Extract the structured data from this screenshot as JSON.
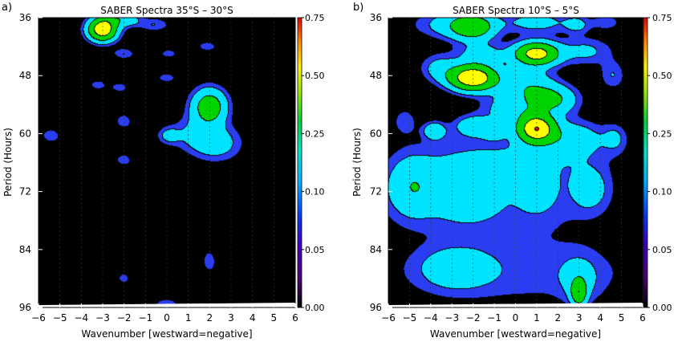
{
  "chart_data": [
    {
      "type": "heatmap",
      "panel_label": "a)",
      "title": "SABER Spectra   35°S  –   30°S",
      "xlabel": "Wavenumber [westward=negative]",
      "ylabel": "Period (Hours)",
      "xlim": [
        -6,
        6
      ],
      "ylim": [
        96,
        36
      ],
      "xticks": [
        "−6",
        "−5",
        "−4",
        "−3",
        "−2",
        "−1",
        "0",
        "1",
        "2",
        "3",
        "4",
        "5",
        "6"
      ],
      "yticks": [
        "36",
        "48",
        "60",
        "72",
        "84",
        "96"
      ],
      "colorbar_ticks": [
        "0.75",
        "0.50",
        "0.25",
        "0.10",
        "0.05",
        "0.00"
      ],
      "contour_levels": [
        0.05,
        0.1,
        0.25,
        0.5,
        0.75
      ],
      "blobs": [
        {
          "wavenumber": -3.0,
          "period": 38.5,
          "sx": 0.45,
          "sy": 1.6,
          "amp": 0.7
        },
        {
          "wavenumber": -2.6,
          "period": 36.5,
          "sx": 0.4,
          "sy": 1.0,
          "amp": 0.14
        },
        {
          "wavenumber": -1.8,
          "period": 36.5,
          "sx": 0.4,
          "sy": 1.0,
          "amp": 0.16
        },
        {
          "wavenumber": -0.6,
          "period": 37.5,
          "sx": 0.5,
          "sy": 1.0,
          "amp": 0.1
        },
        {
          "wavenumber": -2.0,
          "period": 43.5,
          "sx": 0.35,
          "sy": 0.8,
          "amp": 0.1
        },
        {
          "wavenumber": 0.1,
          "period": 43.5,
          "sx": 0.3,
          "sy": 0.7,
          "amp": 0.08
        },
        {
          "wavenumber": 1.9,
          "period": 42.0,
          "sx": 0.35,
          "sy": 0.8,
          "amp": 0.08
        },
        {
          "wavenumber": -3.2,
          "period": 50.0,
          "sx": 0.3,
          "sy": 0.8,
          "amp": 0.08
        },
        {
          "wavenumber": -2.2,
          "period": 50.5,
          "sx": 0.3,
          "sy": 0.8,
          "amp": 0.08
        },
        {
          "wavenumber": 0.0,
          "period": 48.5,
          "sx": 0.3,
          "sy": 0.7,
          "amp": 0.09
        },
        {
          "wavenumber": 2.0,
          "period": 54.5,
          "sx": 0.55,
          "sy": 2.5,
          "amp": 0.38
        },
        {
          "wavenumber": 1.2,
          "period": 60.0,
          "sx": 0.75,
          "sy": 2.5,
          "amp": 0.09
        },
        {
          "wavenumber": 2.3,
          "period": 62.0,
          "sx": 0.8,
          "sy": 2.5,
          "amp": 0.16
        },
        {
          "wavenumber": 0.1,
          "period": 60.5,
          "sx": 0.35,
          "sy": 1.2,
          "amp": 0.12
        },
        {
          "wavenumber": -2.0,
          "period": 57.5,
          "sx": 0.25,
          "sy": 1.0,
          "amp": 0.1
        },
        {
          "wavenumber": -5.4,
          "period": 60.5,
          "sx": 0.35,
          "sy": 1.2,
          "amp": 0.08
        },
        {
          "wavenumber": -2.0,
          "period": 65.5,
          "sx": 0.3,
          "sy": 1.0,
          "amp": 0.08
        },
        {
          "wavenumber": 2.0,
          "period": 86.5,
          "sx": 0.25,
          "sy": 1.8,
          "amp": 0.08
        },
        {
          "wavenumber": -2.0,
          "period": 90.0,
          "sx": 0.25,
          "sy": 1.0,
          "amp": 0.07
        },
        {
          "wavenumber": 0.0,
          "period": 95.5,
          "sx": 0.55,
          "sy": 1.3,
          "amp": 0.07
        }
      ]
    },
    {
      "type": "heatmap",
      "panel_label": "b)",
      "title": "SABER Spectra   10°S  –   5°S",
      "xlabel": "Wavenumber [westward=negative]",
      "ylabel": "Period (Hours)",
      "xlim": [
        -6,
        6
      ],
      "ylim": [
        96,
        36
      ],
      "xticks": [
        "−6",
        "−5",
        "−4",
        "−3",
        "−2",
        "−1",
        "0",
        "1",
        "2",
        "3",
        "4",
        "5",
        "6"
      ],
      "yticks": [
        "36",
        "48",
        "60",
        "72",
        "84",
        "96"
      ],
      "colorbar_ticks": [
        "0.75",
        "0.50",
        "0.25",
        "0.10",
        "0.05",
        "0.00"
      ],
      "contour_levels": [
        0.05,
        0.1,
        0.25,
        0.5,
        0.75
      ],
      "blobs": [
        {
          "wavenumber": -2.0,
          "period": 38.0,
          "sx": 0.7,
          "sy": 1.8,
          "amp": 0.36
        },
        {
          "wavenumber": -3.0,
          "period": 37.5,
          "sx": 1.2,
          "sy": 2.0,
          "amp": 0.14
        },
        {
          "wavenumber": 1.0,
          "period": 37.0,
          "sx": 1.1,
          "sy": 1.6,
          "amp": 0.14
        },
        {
          "wavenumber": 2.9,
          "period": 37.5,
          "sx": 0.4,
          "sy": 1.2,
          "amp": 0.12
        },
        {
          "wavenumber": 4.3,
          "period": 37.0,
          "sx": 0.5,
          "sy": 1.2,
          "amp": 0.08
        },
        {
          "wavenumber": 1.0,
          "period": 43.5,
          "sx": 0.7,
          "sy": 1.6,
          "amp": 0.62
        },
        {
          "wavenumber": -1.6,
          "period": 43.5,
          "sx": 0.8,
          "sy": 1.6,
          "amp": 0.14
        },
        {
          "wavenumber": 3.3,
          "period": 43.0,
          "sx": 0.9,
          "sy": 2.0,
          "amp": 0.12
        },
        {
          "wavenumber": -2.0,
          "period": 48.5,
          "sx": 0.75,
          "sy": 1.8,
          "amp": 0.74
        },
        {
          "wavenumber": -3.6,
          "period": 46.5,
          "sx": 0.6,
          "sy": 2.0,
          "amp": 0.13
        },
        {
          "wavenumber": 0.5,
          "period": 50.0,
          "sx": 0.9,
          "sy": 2.5,
          "amp": 0.2
        },
        {
          "wavenumber": 1.7,
          "period": 53.0,
          "sx": 0.8,
          "sy": 2.0,
          "amp": 0.28
        },
        {
          "wavenumber": 4.6,
          "period": 48.0,
          "sx": 0.4,
          "sy": 2.0,
          "amp": 0.1
        },
        {
          "wavenumber": -0.3,
          "period": 55.0,
          "sx": 0.9,
          "sy": 2.0,
          "amp": 0.14
        },
        {
          "wavenumber": 1.0,
          "period": 59.0,
          "sx": 0.6,
          "sy": 2.0,
          "amp": 0.7
        },
        {
          "wavenumber": -2.0,
          "period": 58.5,
          "sx": 0.6,
          "sy": 1.5,
          "amp": 0.18
        },
        {
          "wavenumber": -3.8,
          "period": 59.5,
          "sx": 0.35,
          "sy": 1.2,
          "amp": 0.22
        },
        {
          "wavenumber": -1.0,
          "period": 59.5,
          "sx": 0.4,
          "sy": 1.2,
          "amp": 0.14
        },
        {
          "wavenumber": 2.7,
          "period": 61.0,
          "sx": 1.0,
          "sy": 2.5,
          "amp": 0.16
        },
        {
          "wavenumber": 4.7,
          "period": 61.0,
          "sx": 0.4,
          "sy": 2.0,
          "amp": 0.1
        },
        {
          "wavenumber": -5.2,
          "period": 57.5,
          "sx": 0.4,
          "sy": 2.0,
          "amp": 0.08
        },
        {
          "wavenumber": 0.0,
          "period": 65.0,
          "sx": 2.8,
          "sy": 3.5,
          "amp": 0.09
        },
        {
          "wavenumber": -4.9,
          "period": 71.0,
          "sx": 0.7,
          "sy": 4.0,
          "amp": 0.14
        },
        {
          "wavenumber": -2.2,
          "period": 72.0,
          "sx": 1.0,
          "sy": 4.0,
          "amp": 0.16
        },
        {
          "wavenumber": 1.0,
          "period": 71.5,
          "sx": 0.6,
          "sy": 3.0,
          "amp": 0.15
        },
        {
          "wavenumber": 3.5,
          "period": 71.5,
          "sx": 0.6,
          "sy": 3.0,
          "amp": 0.14
        },
        {
          "wavenumber": -4.4,
          "period": 71.5,
          "sx": 1.4,
          "sy": 5.0,
          "amp": 0.09
        },
        {
          "wavenumber": 0.0,
          "period": 74.0,
          "sx": 3.2,
          "sy": 6.0,
          "amp": 0.07
        },
        {
          "wavenumber": -2.8,
          "period": 88.0,
          "sx": 1.2,
          "sy": 3.0,
          "amp": 0.15
        },
        {
          "wavenumber": 3.0,
          "period": 93.0,
          "sx": 0.25,
          "sy": 1.8,
          "amp": 0.38
        },
        {
          "wavenumber": 3.0,
          "period": 90.0,
          "sx": 0.6,
          "sy": 3.0,
          "amp": 0.12
        },
        {
          "wavenumber": 0.5,
          "period": 89.0,
          "sx": 4.5,
          "sy": 5.0,
          "amp": 0.07
        }
      ]
    }
  ]
}
